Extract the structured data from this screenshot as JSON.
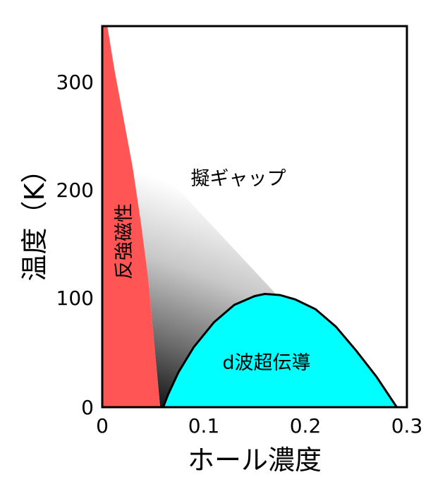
{
  "chart_data": {
    "type": "phase-diagram",
    "xlabel": "ホール濃度",
    "ylabel": "温度（K）",
    "xlim": [
      0,
      0.3
    ],
    "ylim": [
      0,
      350
    ],
    "x_ticks": [
      "0",
      "0.1",
      "0.2",
      "0.3"
    ],
    "y_ticks": [
      "0",
      "100",
      "200",
      "300"
    ],
    "regions": {
      "afm": {
        "label": "反強磁性",
        "color": "#ff5555",
        "boundary": [
          [
            0.005,
            350
          ],
          [
            0.012,
            310
          ],
          [
            0.02,
            270
          ],
          [
            0.03,
            220
          ],
          [
            0.038,
            170
          ],
          [
            0.045,
            120
          ],
          [
            0.05,
            70
          ],
          [
            0.054,
            30
          ],
          [
            0.057,
            0
          ]
        ]
      },
      "pseudogap": {
        "label": "擬ギャップ",
        "shading": "gray-gradient",
        "apex": [
          0.035,
          240
        ],
        "end": [
          0.175,
          100
        ]
      },
      "dwave": {
        "label": "d波超伝導",
        "color": "#00ffff",
        "dome": [
          [
            0.06,
            0
          ],
          [
            0.065,
            12
          ],
          [
            0.075,
            32
          ],
          [
            0.09,
            55
          ],
          [
            0.11,
            78
          ],
          [
            0.13,
            94
          ],
          [
            0.15,
            102
          ],
          [
            0.16,
            104
          ],
          [
            0.175,
            103
          ],
          [
            0.19,
            99
          ],
          [
            0.21,
            90
          ],
          [
            0.23,
            74
          ],
          [
            0.25,
            52
          ],
          [
            0.27,
            28
          ],
          [
            0.29,
            0
          ]
        ]
      }
    }
  }
}
